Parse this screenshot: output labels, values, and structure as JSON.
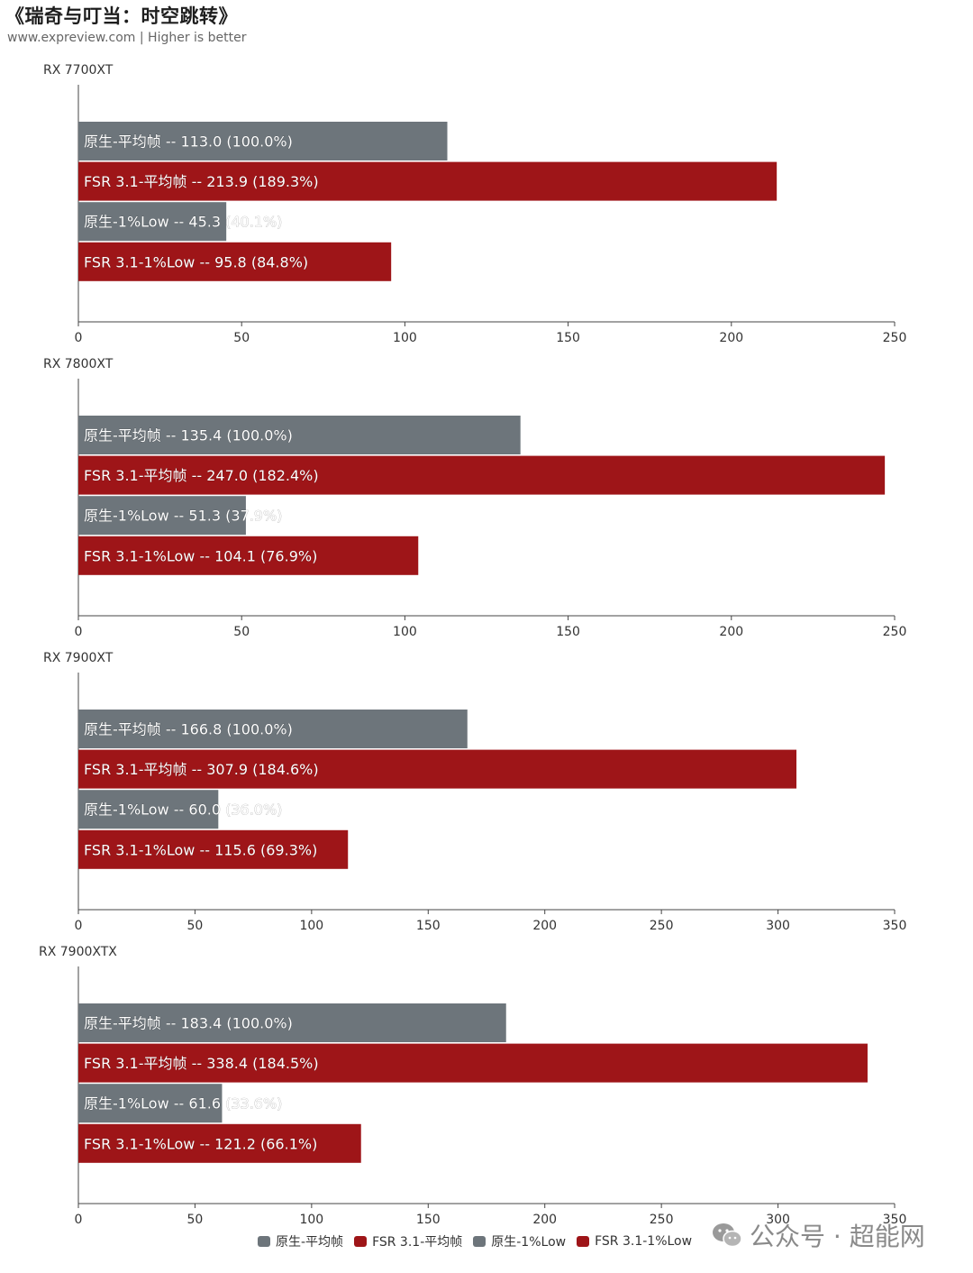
{
  "title": "《瑞奇与叮当：时空跳转》",
  "subtitle": "www.expreview.com | Higher is better",
  "colors": {
    "native": "#6d757b",
    "fsr": "#9e1518"
  },
  "legend": [
    {
      "label": "原生-平均帧",
      "color": "#6d757b"
    },
    {
      "label": "FSR 3.1-平均帧",
      "color": "#9e1518"
    },
    {
      "label": "原生-1%Low",
      "color": "#6d757b"
    },
    {
      "label": "FSR 3.1-1%Low",
      "color": "#9e1518"
    }
  ],
  "watermark": {
    "text": "公众号 · 超能网",
    "icon": "wechat-icon"
  },
  "chart_data": [
    {
      "type": "bar",
      "orientation": "horizontal",
      "title": "RX 7700XT",
      "xlim": [
        0,
        250
      ],
      "xticks": [
        0,
        50,
        100,
        150,
        200,
        250
      ],
      "bars": [
        {
          "series": "原生-平均帧",
          "value": 113.0,
          "label": "原生-平均帧  --  113.0 (100.0%)"
        },
        {
          "series": "FSR 3.1-平均帧",
          "value": 213.9,
          "label": "FSR 3.1-平均帧  --  213.9 (189.3%)"
        },
        {
          "series": "原生-1%Low",
          "value": 45.3,
          "label": "原生-1%Low  --  45.3 (40.1%)"
        },
        {
          "series": "FSR 3.1-1%Low",
          "value": 95.8,
          "label": "FSR 3.1-1%Low  --  95.8 (84.8%)"
        }
      ]
    },
    {
      "type": "bar",
      "orientation": "horizontal",
      "title": "RX 7800XT",
      "xlim": [
        0,
        250
      ],
      "xticks": [
        0,
        50,
        100,
        150,
        200,
        250
      ],
      "bars": [
        {
          "series": "原生-平均帧",
          "value": 135.4,
          "label": "原生-平均帧  --  135.4 (100.0%)"
        },
        {
          "series": "FSR 3.1-平均帧",
          "value": 247.0,
          "label": "FSR 3.1-平均帧  --  247.0 (182.4%)"
        },
        {
          "series": "原生-1%Low",
          "value": 51.3,
          "label": "原生-1%Low  --  51.3 (37.9%)"
        },
        {
          "series": "FSR 3.1-1%Low",
          "value": 104.1,
          "label": "FSR 3.1-1%Low  --  104.1 (76.9%)"
        }
      ]
    },
    {
      "type": "bar",
      "orientation": "horizontal",
      "title": "RX 7900XT",
      "xlim": [
        0,
        350
      ],
      "xticks": [
        0,
        50,
        100,
        150,
        200,
        250,
        300,
        350
      ],
      "bars": [
        {
          "series": "原生-平均帧",
          "value": 166.8,
          "label": "原生-平均帧  --  166.8 (100.0%)"
        },
        {
          "series": "FSR 3.1-平均帧",
          "value": 307.9,
          "label": "FSR 3.1-平均帧  --  307.9 (184.6%)"
        },
        {
          "series": "原生-1%Low",
          "value": 60.0,
          "label": "原生-1%Low  --  60.0 (36.0%)"
        },
        {
          "series": "FSR 3.1-1%Low",
          "value": 115.6,
          "label": "FSR 3.1-1%Low  --  115.6 (69.3%)"
        }
      ]
    },
    {
      "type": "bar",
      "orientation": "horizontal",
      "title": "RX 7900XTX",
      "xlim": [
        0,
        350
      ],
      "xticks": [
        0,
        50,
        100,
        150,
        200,
        250,
        300,
        350
      ],
      "bars": [
        {
          "series": "原生-平均帧",
          "value": 183.4,
          "label": "原生-平均帧  --  183.4 (100.0%)"
        },
        {
          "series": "FSR 3.1-平均帧",
          "value": 338.4,
          "label": "FSR 3.1-平均帧  --  338.4 (184.5%)"
        },
        {
          "series": "原生-1%Low",
          "value": 61.6,
          "label": "原生-1%Low  --  61.6 (33.6%)"
        },
        {
          "series": "FSR 3.1-1%Low",
          "value": 121.2,
          "label": "FSR 3.1-1%Low  --  121.2 (66.1%)"
        }
      ]
    }
  ]
}
